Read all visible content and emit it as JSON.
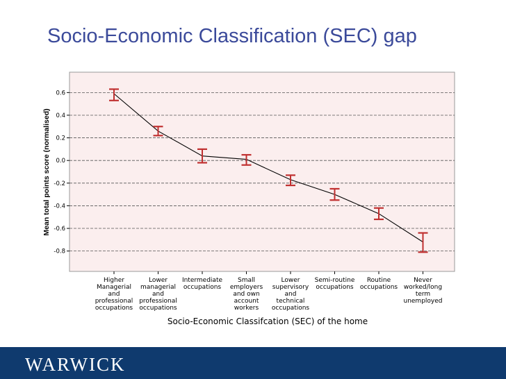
{
  "slide": {
    "title": "Socio-Economic Classification (SEC) gap"
  },
  "footer": {
    "logo_text": "WARWICK",
    "bar_color": "#0f3a6e"
  },
  "chart_data": {
    "type": "line",
    "title": "",
    "xlabel": "Socio-Economic Classifcation (SEC) of the home",
    "ylabel": "Mean total points score (normalised)",
    "ylim": [
      -0.98,
      0.78
    ],
    "yticks": [
      "0.6",
      "0.4",
      "0.2",
      "0.0",
      "-0.2",
      "-0.4",
      "-0.6",
      "-0.8"
    ],
    "ytick_values": [
      0.6,
      0.4,
      0.2,
      0.0,
      -0.2,
      -0.4,
      -0.6,
      -0.8
    ],
    "grid": "horizontal dashed",
    "error_bars": true,
    "colors": {
      "plot_bg": "#fbeeee",
      "line": "#000000",
      "error_bar": "#c03030",
      "grid": "#555555"
    },
    "categories": [
      [
        "Higher",
        "Managerial",
        "and",
        "professional",
        "occupations"
      ],
      [
        "Lower",
        "managerial",
        "and",
        "professional",
        "occupations"
      ],
      [
        "Intermediate",
        "occupations"
      ],
      [
        "Small",
        "employers",
        "and own",
        "account",
        "workers"
      ],
      [
        "Lower",
        "supervisory",
        "and",
        "technical",
        "occupations"
      ],
      [
        "Semi-routine",
        "occupations"
      ],
      [
        "Routine",
        "occupations"
      ],
      [
        "Never",
        "worked/long",
        "term",
        "unemployed"
      ]
    ],
    "series": [
      {
        "values": [
          0.59,
          0.26,
          0.04,
          0.01,
          -0.17,
          -0.3,
          -0.47,
          -0.72
        ],
        "ci_low": [
          0.53,
          0.22,
          -0.02,
          -0.04,
          -0.22,
          -0.35,
          -0.52,
          -0.81
        ],
        "ci_high": [
          0.63,
          0.3,
          0.1,
          0.05,
          -0.13,
          -0.25,
          -0.42,
          -0.64
        ]
      }
    ]
  }
}
